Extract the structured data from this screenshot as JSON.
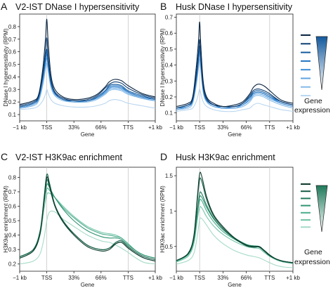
{
  "chart_data": [
    {
      "type": "line",
      "letter": "A",
      "title": "V2-IST DNase I hypersensitivity",
      "xlabel": "Gene",
      "ylabel": "DNase I hypersensitivity (RPM)",
      "x_ticks": [
        "−1 kb",
        "TSS",
        "33%",
        "66%",
        "TTS",
        "+1 kb"
      ],
      "ylim": [
        0.05,
        0.9
      ],
      "y_ticks": [
        0.1,
        0.2,
        0.3,
        0.4,
        0.5,
        0.6,
        0.7,
        0.8
      ],
      "vlines_at": [
        "TSS",
        "TTS"
      ],
      "grid": false,
      "legend": "right, gradient: gene expression",
      "x": [
        0,
        0.5,
        0.7,
        0.85,
        0.95,
        1.0,
        1.05,
        1.15,
        1.3,
        1.6,
        2.0,
        2.5,
        2.85,
        3.15,
        3.3,
        3.5,
        3.75,
        4.0,
        4.5,
        5.0
      ],
      "series": [
        {
          "color": "#0b2540",
          "values": [
            0.18,
            0.21,
            0.26,
            0.46,
            0.7,
            0.86,
            0.68,
            0.42,
            0.3,
            0.24,
            0.22,
            0.23,
            0.26,
            0.32,
            0.36,
            0.38,
            0.37,
            0.33,
            0.27,
            0.24
          ]
        },
        {
          "color": "#0d3d72",
          "values": [
            0.17,
            0.2,
            0.25,
            0.42,
            0.6,
            0.71,
            0.57,
            0.38,
            0.28,
            0.23,
            0.21,
            0.22,
            0.25,
            0.31,
            0.34,
            0.36,
            0.35,
            0.31,
            0.26,
            0.23
          ]
        },
        {
          "color": "#135a9e",
          "values": [
            0.16,
            0.19,
            0.24,
            0.4,
            0.55,
            0.62,
            0.52,
            0.36,
            0.27,
            0.22,
            0.21,
            0.21,
            0.24,
            0.29,
            0.33,
            0.34,
            0.33,
            0.29,
            0.25,
            0.22
          ]
        },
        {
          "color": "#2173c2",
          "values": [
            0.16,
            0.19,
            0.24,
            0.4,
            0.54,
            0.6,
            0.51,
            0.36,
            0.27,
            0.22,
            0.21,
            0.21,
            0.24,
            0.29,
            0.32,
            0.33,
            0.32,
            0.28,
            0.24,
            0.22
          ]
        },
        {
          "color": "#3a8ad6",
          "values": [
            0.16,
            0.19,
            0.23,
            0.38,
            0.52,
            0.58,
            0.5,
            0.35,
            0.27,
            0.22,
            0.21,
            0.21,
            0.23,
            0.28,
            0.31,
            0.32,
            0.31,
            0.28,
            0.24,
            0.22
          ]
        },
        {
          "color": "#5fa3e0",
          "values": [
            0.15,
            0.18,
            0.22,
            0.36,
            0.5,
            0.55,
            0.48,
            0.34,
            0.26,
            0.22,
            0.2,
            0.21,
            0.23,
            0.27,
            0.3,
            0.31,
            0.3,
            0.27,
            0.23,
            0.21
          ]
        },
        {
          "color": "#86bbe8",
          "values": [
            0.15,
            0.17,
            0.21,
            0.33,
            0.46,
            0.51,
            0.45,
            0.32,
            0.25,
            0.21,
            0.2,
            0.2,
            0.22,
            0.26,
            0.29,
            0.3,
            0.29,
            0.26,
            0.23,
            0.21
          ]
        },
        {
          "color": "#b9d6f0",
          "values": [
            0.14,
            0.15,
            0.17,
            0.21,
            0.26,
            0.3,
            0.27,
            0.22,
            0.19,
            0.17,
            0.16,
            0.16,
            0.17,
            0.19,
            0.21,
            0.22,
            0.21,
            0.19,
            0.17,
            0.15
          ]
        }
      ]
    },
    {
      "type": "line",
      "letter": "B",
      "title": "Husk DNase I hypersensitivity",
      "xlabel": "Gene",
      "ylabel": "DNase I hypersensitivity (RPM)",
      "x_ticks": [
        "−1 kb",
        "TSS",
        "33%",
        "66%",
        "TTS",
        "+1 kb"
      ],
      "ylim": [
        0.05,
        0.72
      ],
      "y_ticks": [
        0.1,
        0.2,
        0.3,
        0.4,
        0.5,
        0.6,
        0.7
      ],
      "vlines_at": [
        "TSS",
        "TTS"
      ],
      "grid": false,
      "legend": "right, gradient: gene expression",
      "x": [
        0,
        0.5,
        0.7,
        0.85,
        0.95,
        1.0,
        1.05,
        1.15,
        1.3,
        1.6,
        2.0,
        2.5,
        2.85,
        3.15,
        3.3,
        3.5,
        3.75,
        4.0,
        4.5,
        5.0
      ],
      "series": [
        {
          "color": "#0b2540",
          "values": [
            0.14,
            0.16,
            0.2,
            0.38,
            0.55,
            0.67,
            0.52,
            0.3,
            0.2,
            0.16,
            0.14,
            0.15,
            0.17,
            0.22,
            0.26,
            0.28,
            0.27,
            0.24,
            0.18,
            0.16
          ]
        },
        {
          "color": "#0d3d72",
          "values": [
            0.13,
            0.15,
            0.19,
            0.34,
            0.48,
            0.56,
            0.45,
            0.27,
            0.19,
            0.15,
            0.14,
            0.14,
            0.16,
            0.21,
            0.24,
            0.25,
            0.24,
            0.22,
            0.17,
            0.15
          ]
        },
        {
          "color": "#135a9e",
          "values": [
            0.13,
            0.15,
            0.18,
            0.32,
            0.45,
            0.52,
            0.43,
            0.26,
            0.18,
            0.15,
            0.14,
            0.14,
            0.16,
            0.2,
            0.23,
            0.24,
            0.23,
            0.21,
            0.17,
            0.15
          ]
        },
        {
          "color": "#2173c2",
          "values": [
            0.13,
            0.15,
            0.18,
            0.31,
            0.44,
            0.51,
            0.42,
            0.26,
            0.18,
            0.15,
            0.14,
            0.14,
            0.16,
            0.2,
            0.22,
            0.23,
            0.22,
            0.2,
            0.17,
            0.15
          ]
        },
        {
          "color": "#3a8ad6",
          "values": [
            0.13,
            0.14,
            0.18,
            0.3,
            0.43,
            0.5,
            0.41,
            0.25,
            0.18,
            0.15,
            0.13,
            0.14,
            0.15,
            0.19,
            0.22,
            0.23,
            0.22,
            0.2,
            0.16,
            0.14
          ]
        },
        {
          "color": "#5fa3e0",
          "values": [
            0.12,
            0.14,
            0.17,
            0.29,
            0.41,
            0.48,
            0.4,
            0.24,
            0.17,
            0.14,
            0.13,
            0.13,
            0.15,
            0.18,
            0.21,
            0.22,
            0.21,
            0.19,
            0.16,
            0.14
          ]
        },
        {
          "color": "#86bbe8",
          "values": [
            0.12,
            0.13,
            0.16,
            0.27,
            0.38,
            0.44,
            0.37,
            0.23,
            0.17,
            0.14,
            0.13,
            0.13,
            0.14,
            0.17,
            0.2,
            0.21,
            0.2,
            0.18,
            0.15,
            0.13
          ]
        },
        {
          "color": "#b9d6f0",
          "values": [
            0.11,
            0.12,
            0.13,
            0.17,
            0.22,
            0.25,
            0.22,
            0.17,
            0.14,
            0.12,
            0.11,
            0.11,
            0.12,
            0.13,
            0.15,
            0.16,
            0.15,
            0.14,
            0.12,
            0.11
          ]
        }
      ]
    },
    {
      "type": "line",
      "letter": "C",
      "title": "V2-IST H3K9ac enrichment",
      "xlabel": "Gene",
      "ylabel": "H3K9ac enrichment (RPM)",
      "x_ticks": [
        "−1 kb",
        "TSS",
        "33%",
        "66%",
        "TTS",
        "+1 kb"
      ],
      "ylim": [
        0.15,
        0.87
      ],
      "y_ticks": [
        0.2,
        0.3,
        0.4,
        0.5,
        0.6,
        0.7,
        0.8
      ],
      "vlines_at": [
        "TSS",
        "TTS"
      ],
      "grid": false,
      "legend": "right, gradient: gene expression",
      "x": [
        0,
        0.5,
        0.75,
        0.9,
        1.0,
        1.1,
        1.3,
        1.6,
        2.0,
        2.5,
        3.0,
        3.3,
        3.55,
        3.75,
        4.0,
        4.3,
        4.6,
        5.0
      ],
      "series": [
        {
          "color": "#0d3b2e",
          "values": [
            0.24,
            0.29,
            0.41,
            0.64,
            0.8,
            0.74,
            0.6,
            0.49,
            0.4,
            0.32,
            0.29,
            0.3,
            0.34,
            0.35,
            0.31,
            0.27,
            0.24,
            0.22
          ]
        },
        {
          "color": "#145c45",
          "values": [
            0.25,
            0.3,
            0.42,
            0.66,
            0.82,
            0.76,
            0.61,
            0.5,
            0.41,
            0.33,
            0.3,
            0.31,
            0.35,
            0.36,
            0.32,
            0.28,
            0.25,
            0.23
          ]
        },
        {
          "color": "#1f7a5c",
          "values": [
            0.24,
            0.29,
            0.41,
            0.63,
            0.78,
            0.73,
            0.6,
            0.49,
            0.41,
            0.33,
            0.3,
            0.31,
            0.34,
            0.35,
            0.31,
            0.27,
            0.24,
            0.22
          ]
        },
        {
          "color": "#2f9474",
          "values": [
            0.25,
            0.3,
            0.43,
            0.64,
            0.75,
            0.73,
            0.66,
            0.58,
            0.5,
            0.43,
            0.39,
            0.38,
            0.38,
            0.37,
            0.33,
            0.29,
            0.26,
            0.24
          ]
        },
        {
          "color": "#4aad8c",
          "values": [
            0.25,
            0.3,
            0.42,
            0.62,
            0.72,
            0.71,
            0.66,
            0.59,
            0.52,
            0.45,
            0.41,
            0.4,
            0.39,
            0.38,
            0.34,
            0.29,
            0.26,
            0.24
          ]
        },
        {
          "color": "#73c4a6",
          "values": [
            0.24,
            0.29,
            0.4,
            0.58,
            0.68,
            0.69,
            0.66,
            0.6,
            0.53,
            0.46,
            0.42,
            0.41,
            0.4,
            0.38,
            0.34,
            0.29,
            0.26,
            0.24
          ]
        },
        {
          "color": "#a6dbc6",
          "values": [
            0.2,
            0.22,
            0.27,
            0.38,
            0.5,
            0.56,
            0.56,
            0.51,
            0.46,
            0.4,
            0.36,
            0.35,
            0.33,
            0.31,
            0.28,
            0.24,
            0.21,
            0.2
          ]
        }
      ]
    },
    {
      "type": "line",
      "letter": "D",
      "title": "Husk H3K9ac enrichment",
      "xlabel": "Gene",
      "ylabel": "H3K9ac enrichment (RPM)",
      "x_ticks": [
        "−1 kb",
        "TSS",
        "33%",
        "66%",
        "TTS",
        "+1 kb"
      ],
      "ylim": [
        0.15,
        1.62
      ],
      "y_ticks": [
        0.5,
        1.0,
        1.5
      ],
      "y_tick_labels": [
        "0.5",
        "1",
        "1.5"
      ],
      "vlines_at": [
        "TSS",
        "TTS"
      ],
      "grid": false,
      "legend": "right, gradient: gene expression",
      "x": [
        0,
        0.5,
        0.75,
        0.9,
        1.0,
        1.1,
        1.3,
        1.6,
        2.0,
        2.5,
        3.0,
        3.3,
        3.55,
        3.75,
        4.0,
        4.3,
        4.6,
        5.0
      ],
      "series": [
        {
          "color": "#0d3b2e",
          "values": [
            0.3,
            0.4,
            0.65,
            1.2,
            1.53,
            1.48,
            1.2,
            0.95,
            0.78,
            0.62,
            0.52,
            0.5,
            0.5,
            0.45,
            0.38,
            0.32,
            0.29,
            0.27
          ]
        },
        {
          "color": "#145c45",
          "values": [
            0.3,
            0.4,
            0.64,
            1.15,
            1.45,
            1.41,
            1.16,
            0.93,
            0.76,
            0.61,
            0.51,
            0.49,
            0.49,
            0.44,
            0.37,
            0.32,
            0.29,
            0.27
          ]
        },
        {
          "color": "#1f7a5c",
          "values": [
            0.3,
            0.39,
            0.6,
            1.0,
            1.25,
            1.24,
            1.08,
            0.9,
            0.74,
            0.61,
            0.52,
            0.5,
            0.49,
            0.44,
            0.37,
            0.32,
            0.29,
            0.27
          ]
        },
        {
          "color": "#2f9474",
          "values": [
            0.3,
            0.39,
            0.6,
            1.0,
            1.2,
            1.19,
            1.05,
            0.89,
            0.74,
            0.62,
            0.53,
            0.51,
            0.5,
            0.45,
            0.38,
            0.32,
            0.29,
            0.27
          ]
        },
        {
          "color": "#4aad8c",
          "values": [
            0.29,
            0.38,
            0.58,
            0.95,
            1.15,
            1.14,
            1.0,
            0.85,
            0.71,
            0.6,
            0.52,
            0.5,
            0.49,
            0.44,
            0.37,
            0.31,
            0.28,
            0.26
          ]
        },
        {
          "color": "#73c4a6",
          "values": [
            0.28,
            0.36,
            0.54,
            0.88,
            1.05,
            1.04,
            0.92,
            0.79,
            0.67,
            0.57,
            0.5,
            0.48,
            0.47,
            0.42,
            0.36,
            0.31,
            0.28,
            0.26
          ]
        },
        {
          "color": "#a6dbc6",
          "values": [
            0.25,
            0.3,
            0.4,
            0.65,
            0.88,
            0.89,
            0.8,
            0.66,
            0.54,
            0.44,
            0.38,
            0.36,
            0.34,
            0.31,
            0.27,
            0.23,
            0.21,
            0.2
          ]
        }
      ]
    }
  ],
  "legends": [
    {
      "label_line1": "Gene",
      "label_line2": "expression",
      "colors": [
        "#0b2540",
        "#0d3d72",
        "#135a9e",
        "#2173c2",
        "#3a8ad6",
        "#5fa3e0",
        "#86bbe8",
        "#b9d6f0"
      ],
      "wedge_color": "#135a9e"
    },
    {
      "label_line1": "Gene",
      "label_line2": "expression",
      "colors": [
        "#0d3b2e",
        "#145c45",
        "#1f7a5c",
        "#2f9474",
        "#4aad8c",
        "#73c4a6",
        "#a6dbc6"
      ],
      "wedge_color": "#1f7a5c"
    }
  ]
}
